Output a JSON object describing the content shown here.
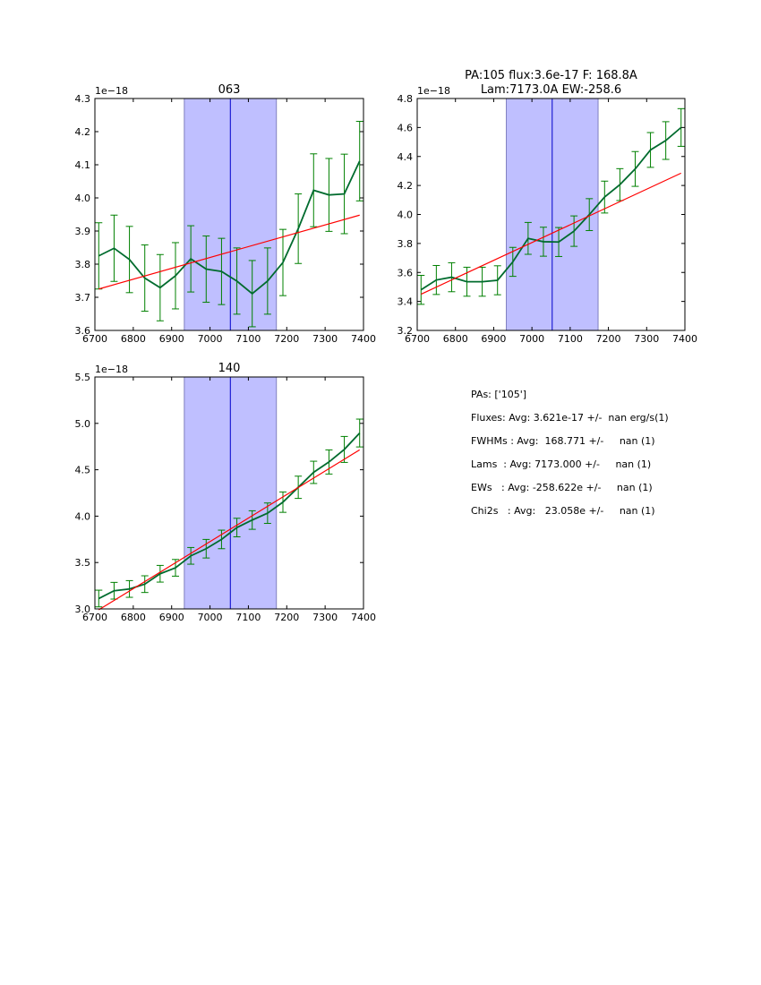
{
  "chart_data": [
    {
      "type": "line",
      "title": [
        "063"
      ],
      "offset_label": "1e−18",
      "xlim": [
        6700,
        7400
      ],
      "ylim": [
        3.6,
        4.3
      ],
      "xticks": [
        6700,
        6800,
        6900,
        7000,
        7100,
        7200,
        7300,
        7400
      ],
      "yticks": [
        3.6,
        3.7,
        3.8,
        3.9,
        4.0,
        4.1,
        4.2,
        4.3
      ],
      "band": [
        6933,
        7173
      ],
      "center_line": 7053,
      "x": [
        6710,
        6750,
        6790,
        6830,
        6870,
        6910,
        6950,
        6990,
        7030,
        7070,
        7110,
        7150,
        7190,
        7230,
        7270,
        7310,
        7350,
        7390
      ],
      "y": [
        3.825,
        3.848,
        3.814,
        3.758,
        3.729,
        3.765,
        3.816,
        3.785,
        3.778,
        3.749,
        3.711,
        3.749,
        3.805,
        3.907,
        4.023,
        4.009,
        4.012,
        4.111
      ],
      "err": [
        0.1,
        0.1,
        0.1,
        0.1,
        0.1,
        0.1,
        0.1,
        0.1,
        0.1,
        0.1,
        0.1,
        0.1,
        0.1,
        0.105,
        0.11,
        0.11,
        0.12,
        0.12
      ],
      "fit": [
        [
          6710,
          3.725
        ],
        [
          7390,
          3.948
        ]
      ]
    },
    {
      "type": "line",
      "title": [
        "PA:105 flux:3.6e-17 F: 168.8A",
        "Lam:7173.0A EW:-258.6"
      ],
      "offset_label": "1e−18",
      "xlim": [
        6700,
        7400
      ],
      "ylim": [
        3.2,
        4.8
      ],
      "xticks": [
        6700,
        6800,
        6900,
        7000,
        7100,
        7200,
        7300,
        7400
      ],
      "yticks": [
        3.2,
        3.4,
        3.6,
        3.8,
        4.0,
        4.2,
        4.4,
        4.6,
        4.8
      ],
      "band": [
        6933,
        7173
      ],
      "center_line": 7053,
      "x": [
        6710,
        6750,
        6790,
        6830,
        6870,
        6910,
        6950,
        6990,
        7030,
        7070,
        7110,
        7150,
        7190,
        7230,
        7270,
        7310,
        7350,
        7390
      ],
      "y": [
        3.48,
        3.548,
        3.567,
        3.536,
        3.536,
        3.546,
        3.673,
        3.835,
        3.812,
        3.81,
        3.885,
        3.999,
        4.12,
        4.206,
        4.314,
        4.445,
        4.51,
        4.6
      ],
      "err": [
        0.1,
        0.1,
        0.1,
        0.1,
        0.1,
        0.1,
        0.1,
        0.11,
        0.1,
        0.1,
        0.105,
        0.11,
        0.11,
        0.11,
        0.12,
        0.12,
        0.13,
        0.13
      ],
      "fit": [
        [
          6710,
          3.45
        ],
        [
          7390,
          4.285
        ]
      ]
    },
    {
      "type": "line",
      "title": [
        "140"
      ],
      "offset_label": "1e−18",
      "xlim": [
        6700,
        7400
      ],
      "ylim": [
        3.0,
        5.5
      ],
      "xticks": [
        6700,
        6800,
        6900,
        7000,
        7100,
        7200,
        7300,
        7400
      ],
      "yticks": [
        3.0,
        3.5,
        4.0,
        4.5,
        5.0,
        5.5
      ],
      "band": [
        6933,
        7173
      ],
      "center_line": 7053,
      "x": [
        6710,
        6750,
        6790,
        6830,
        6870,
        6910,
        6950,
        6990,
        7030,
        7070,
        7110,
        7150,
        7190,
        7230,
        7270,
        7310,
        7350,
        7390
      ],
      "y": [
        3.112,
        3.196,
        3.215,
        3.267,
        3.379,
        3.443,
        3.572,
        3.649,
        3.749,
        3.877,
        3.958,
        4.032,
        4.151,
        4.311,
        4.472,
        4.584,
        4.719,
        4.896
      ],
      "err": [
        0.09,
        0.09,
        0.09,
        0.09,
        0.09,
        0.09,
        0.09,
        0.1,
        0.1,
        0.1,
        0.1,
        0.11,
        0.11,
        0.12,
        0.12,
        0.13,
        0.14,
        0.15
      ],
      "fit": [
        [
          6710,
          2.99
        ],
        [
          7390,
          4.715
        ]
      ]
    }
  ],
  "summary": [
    "PAs: ['105']",
    "Fluxes: Avg: 3.621e-17 +/-  nan erg/s(1)",
    "FWHMs : Avg:  168.771 +/-     nan (1)",
    "Lams  : Avg: 7173.000 +/-     nan (1)",
    "EWs   : Avg: -258.622e +/-     nan (1)",
    "Chi2s   : Avg:   23.058e +/-     nan (1)"
  ],
  "colors": {
    "data": "#006b2e",
    "err": "#008000",
    "fit": "#ff0000",
    "band": "#bfbfff",
    "center": "#0000cc"
  }
}
